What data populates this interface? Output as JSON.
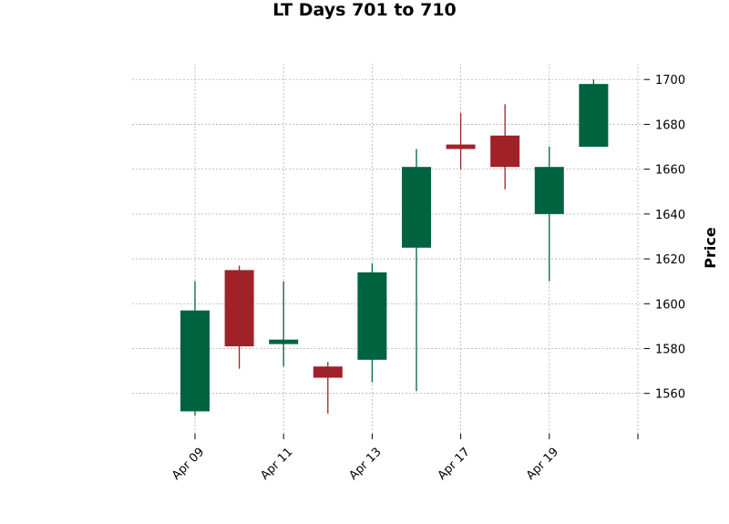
{
  "chart_data": {
    "type": "candlestick",
    "title": "LT Days 701 to 710",
    "ylabel": "Price",
    "xlabel": "",
    "ylim": [
      1542,
      1707
    ],
    "yticks": [
      1560,
      1580,
      1600,
      1620,
      1640,
      1660,
      1680,
      1700
    ],
    "xtick_labels": [
      {
        "index": 0,
        "label": "Apr 09"
      },
      {
        "index": 2,
        "label": "Apr 11"
      },
      {
        "index": 4,
        "label": "Apr 13"
      },
      {
        "index": 6,
        "label": "Apr 17"
      },
      {
        "index": 8,
        "label": "Apr 19"
      },
      {
        "index": 10,
        "label": ""
      }
    ],
    "grid": true,
    "colors": {
      "up": "#006340",
      "down": "#a02128"
    },
    "candles": [
      {
        "open": 1552,
        "high": 1610,
        "low": 1550,
        "close": 1597
      },
      {
        "open": 1615,
        "high": 1617,
        "low": 1571,
        "close": 1581
      },
      {
        "open": 1582,
        "high": 1610,
        "low": 1572,
        "close": 1584
      },
      {
        "open": 1572,
        "high": 1574,
        "low": 1551,
        "close": 1567
      },
      {
        "open": 1575,
        "high": 1618,
        "low": 1565,
        "close": 1614
      },
      {
        "open": 1625,
        "high": 1669,
        "low": 1561,
        "close": 1661
      },
      {
        "open": 1671,
        "high": 1685,
        "low": 1660,
        "close": 1669
      },
      {
        "open": 1675,
        "high": 1689,
        "low": 1651,
        "close": 1661
      },
      {
        "open": 1640,
        "high": 1670,
        "low": 1610,
        "close": 1661
      },
      {
        "open": 1670,
        "high": 1700,
        "low": 1670,
        "close": 1698
      }
    ]
  }
}
